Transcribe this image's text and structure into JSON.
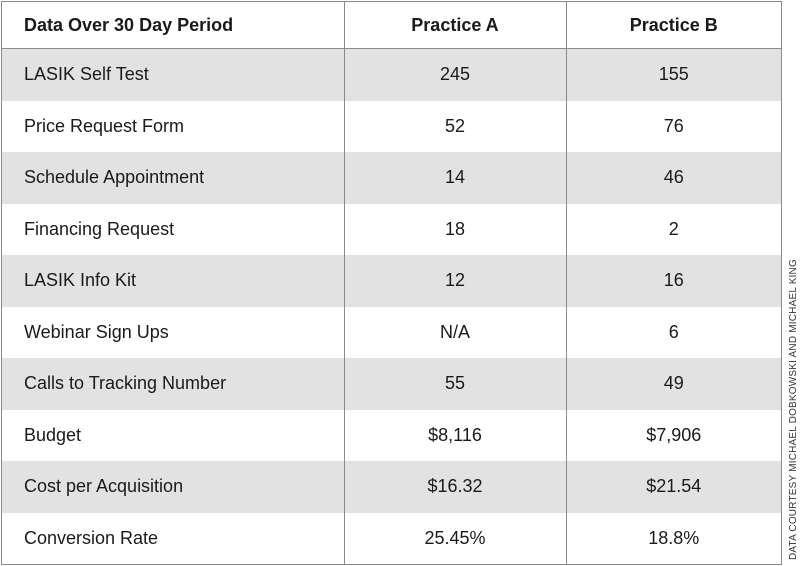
{
  "table": {
    "headers": [
      "Data Over 30 Day Period",
      "Practice A",
      "Practice B"
    ],
    "rows": [
      {
        "label": "LASIK Self Test",
        "a": "245",
        "b": "155"
      },
      {
        "label": "Price Request Form",
        "a": "52",
        "b": "76"
      },
      {
        "label": "Schedule Appointment",
        "a": "14",
        "b": "46"
      },
      {
        "label": "Financing Request",
        "a": "18",
        "b": "2"
      },
      {
        "label": "LASIK Info Kit",
        "a": "12",
        "b": "16"
      },
      {
        "label": "Webinar Sign Ups",
        "a": "N/A",
        "b": "6"
      },
      {
        "label": "Calls to Tracking Number",
        "a": "55",
        "b": "49"
      },
      {
        "label": "Budget",
        "a": "$8,116",
        "b": "$7,906"
      },
      {
        "label": "Cost per Acquisition",
        "a": "$16.32",
        "b": "$21.54"
      },
      {
        "label": "Conversion Rate",
        "a": "25.45%",
        "b": "18.8%"
      }
    ]
  },
  "credit": "DATA COURTESY MICHAEL DOBKOWSKI AND MICHAEL KING",
  "colors": {
    "stripe": "#e2e2e2",
    "border": "#8a8a8a",
    "text": "#1a1a1a"
  }
}
